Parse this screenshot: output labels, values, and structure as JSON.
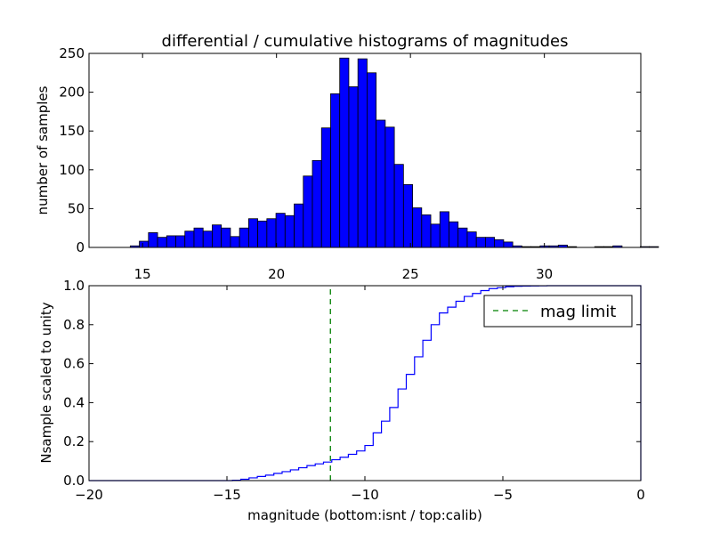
{
  "chart_data": [
    {
      "type": "bar",
      "title": "differential / cumulative histograms of magnitudes",
      "xlabel": "",
      "ylabel": "number of samples",
      "xlim": [
        13.0,
        33.6
      ],
      "ylim": [
        0,
        250
      ],
      "xticks": [
        "15",
        "20",
        "25",
        "30"
      ],
      "xtick_values": [
        15,
        20,
        25,
        30
      ],
      "yticks": [
        "0",
        "50",
        "100",
        "150",
        "200",
        "250"
      ],
      "ytick_values": [
        0,
        50,
        100,
        150,
        200,
        250
      ],
      "bar_color": "#0000ff",
      "bin_start": 14.2,
      "bin_width": 0.34,
      "values": [
        0,
        2,
        8,
        19,
        13,
        15,
        15,
        21,
        25,
        21,
        29,
        25,
        14,
        25,
        37,
        34,
        37,
        44,
        41,
        56,
        92,
        112,
        154,
        198,
        244,
        207,
        243,
        225,
        164,
        155,
        107,
        81,
        51,
        42,
        30,
        46,
        33,
        25,
        20,
        13,
        13,
        10,
        7,
        2,
        1,
        1,
        2,
        2,
        3,
        1,
        0,
        0,
        1,
        1,
        2,
        0,
        0,
        1,
        1
      ]
    },
    {
      "type": "line",
      "title": "",
      "xlabel": "magnitude (bottom:isnt / top:calib)",
      "ylabel": "Nsample scaled to unity",
      "xlim": [
        -20,
        0
      ],
      "ylim": [
        0.0,
        1.0
      ],
      "xticks": [
        "−20",
        "−15",
        "−10",
        "−5",
        "0"
      ],
      "xtick_values": [
        -20,
        -15,
        -10,
        -5,
        0
      ],
      "yticks": [
        "0.0",
        "0.2",
        "0.4",
        "0.6",
        "0.8",
        "1.0"
      ],
      "ytick_values": [
        0.0,
        0.2,
        0.4,
        0.6,
        0.8,
        1.0
      ],
      "series": [
        {
          "name": "cumulative",
          "color": "#0000ff",
          "style": "step",
          "x": [
            -20.0,
            -14.8,
            -14.5,
            -14.2,
            -13.9,
            -13.6,
            -13.3,
            -13.0,
            -12.7,
            -12.4,
            -12.1,
            -11.8,
            -11.5,
            -11.2,
            -10.9,
            -10.6,
            -10.3,
            -10.0,
            -9.7,
            -9.4,
            -9.1,
            -8.8,
            -8.5,
            -8.2,
            -7.9,
            -7.6,
            -7.3,
            -7.0,
            -6.7,
            -6.4,
            -6.1,
            -5.8,
            -5.5,
            -5.2,
            -4.9,
            -4.6,
            -4.3,
            -4.0,
            -3.7,
            -3.4,
            -3.1,
            -2.8,
            -0.1,
            0.0
          ],
          "y": [
            0.0,
            0.002,
            0.007,
            0.014,
            0.021,
            0.028,
            0.037,
            0.046,
            0.055,
            0.066,
            0.077,
            0.086,
            0.095,
            0.107,
            0.12,
            0.135,
            0.152,
            0.18,
            0.245,
            0.305,
            0.375,
            0.47,
            0.545,
            0.635,
            0.72,
            0.8,
            0.86,
            0.89,
            0.92,
            0.945,
            0.96,
            0.975,
            0.985,
            0.99,
            0.995,
            0.997,
            0.998,
            0.999,
            0.9995,
            1.0,
            1.0,
            1.0,
            1.0,
            0.0
          ]
        },
        {
          "name": "mag limit",
          "color": "#008000",
          "style": "dashed-vertical",
          "x": [
            -11.25,
            -11.25
          ],
          "y": [
            0.0,
            1.0
          ]
        }
      ],
      "legend": {
        "entries": [
          "mag limit"
        ],
        "position": "top-right"
      }
    }
  ]
}
